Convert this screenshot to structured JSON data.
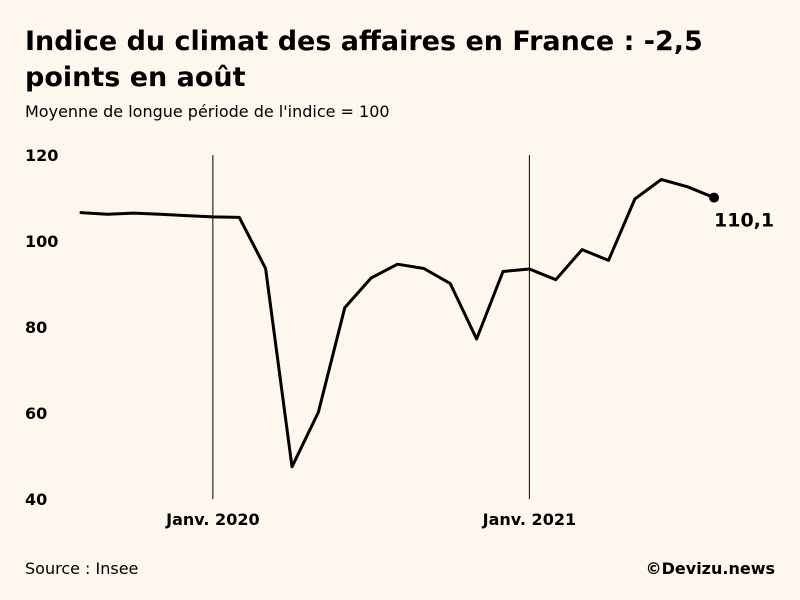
{
  "header": {
    "title": "Indice du climat des affaires en France : -2,5 points en août",
    "subtitle": "Moyenne de longue période de l'indice = 100"
  },
  "footer": {
    "source": "Source : Insee",
    "credit": "©Devizu.news"
  },
  "colors": {
    "background": "#fdf7ee",
    "line": "#000000"
  },
  "chart_data": {
    "type": "line",
    "title": "Indice du climat des affaires en France : -2,5 points en août",
    "subtitle": "Moyenne de longue période de l'indice = 100",
    "xlabel": "",
    "ylabel": "",
    "x": [
      "2019-08",
      "2019-09",
      "2019-10",
      "2019-11",
      "2019-12",
      "2020-01",
      "2020-02",
      "2020-03",
      "2020-04",
      "2020-05",
      "2020-06",
      "2020-07",
      "2020-08",
      "2020-09",
      "2020-10",
      "2020-11",
      "2020-12",
      "2021-01",
      "2021-02",
      "2021-03",
      "2021-04",
      "2021-05",
      "2021-06",
      "2021-07",
      "2021-08"
    ],
    "series": [
      {
        "values": [
          106.6,
          106.2,
          106.5,
          106.2,
          105.9,
          105.6,
          105.5,
          93.6,
          47.5,
          60.2,
          84.5,
          91.4,
          94.6,
          93.6,
          90.1,
          77.2,
          92.9,
          93.5,
          91.0,
          98.0,
          95.5,
          109.8,
          114.3,
          112.6,
          110.1
        ]
      }
    ],
    "ylim": [
      40,
      120
    ],
    "yticks": [
      "40",
      "60",
      "80",
      "100",
      "120"
    ],
    "xticks": [
      {
        "x": "2020-01",
        "label": "Janv. 2020"
      },
      {
        "x": "2021-01",
        "label": "Janv. 2021"
      }
    ],
    "vertical_reference_lines": [
      "2020-01",
      "2021-01"
    ],
    "end_label": "110,1",
    "grid": false,
    "legend": "none"
  }
}
